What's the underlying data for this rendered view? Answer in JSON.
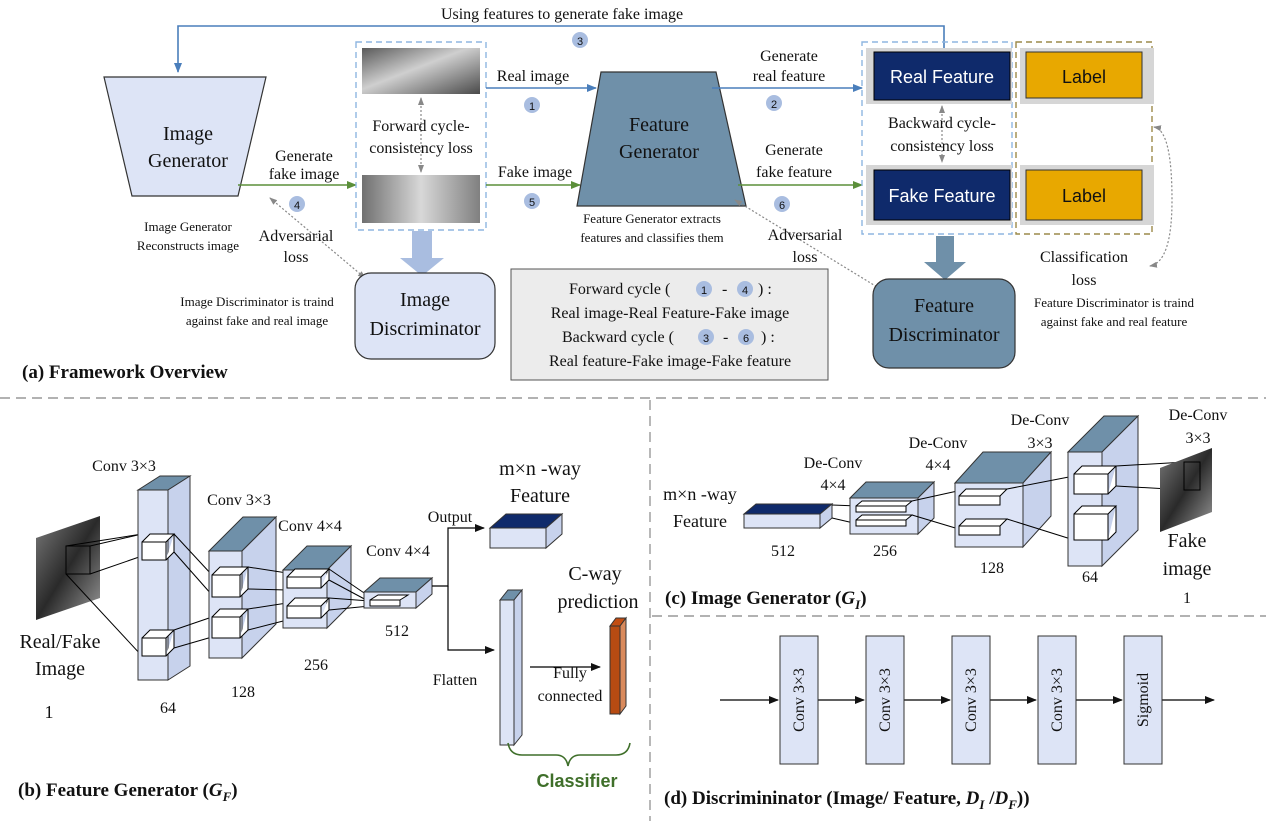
{
  "overview": {
    "top_arrow_label": "Using features to generate fake image",
    "image_generator": [
      "Image",
      "Generator"
    ],
    "image_generator_note": [
      "Image Generator",
      "Reconstructs image"
    ],
    "generate_fake_image": [
      "Generate",
      "fake image"
    ],
    "forward_cycle_loss": [
      "Forward cycle-",
      "consistency loss"
    ],
    "adversarial_loss_left": [
      "Adversarial",
      "loss"
    ],
    "real_image": "Real image",
    "fake_image": "Fake image",
    "feature_generator": [
      "Feature",
      "Generator"
    ],
    "feature_generator_note": [
      "Feature Generator extracts",
      "features and classifies them"
    ],
    "generate_real_feature": [
      "Generate",
      "real feature"
    ],
    "generate_fake_feature": [
      "Generate",
      "fake feature"
    ],
    "real_feature": "Real Feature",
    "fake_feature": "Fake Feature",
    "label": "Label",
    "backward_cycle_loss": [
      "Backward cycle-",
      "consistency loss"
    ],
    "adversarial_loss_right": [
      "Adversarial",
      "loss"
    ],
    "classification_loss": [
      "Classification",
      "loss"
    ],
    "image_discriminator": [
      "Image",
      "Discriminator"
    ],
    "image_discriminator_note": [
      "Image Discriminator is traind",
      "against fake and real image"
    ],
    "feature_discriminator": [
      "Feature",
      "Discriminator"
    ],
    "feature_discriminator_note": [
      "Feature Discriminator is traind",
      "against fake and real feature"
    ],
    "forward_cycle": {
      "prefix": "Forward cycle (",
      "a": "1",
      "dash": "-",
      "b": "4",
      "suffix": ") :"
    },
    "forward_cycle_desc": "Real image-Real Feature-Fake image",
    "backward_cycle": {
      "prefix": "Backward cycle (",
      "a": "3",
      "dash": "-",
      "b": "6",
      "suffix": ") :"
    },
    "backward_cycle_desc": "Real feature-Fake image-Fake feature",
    "step_numbers": [
      "1",
      "2",
      "3",
      "4",
      "5",
      "6"
    ],
    "caption": "(a) Framework Overview"
  },
  "feature_generator_panel": {
    "conv1": "Conv 3×3",
    "conv2": "Conv 3×3",
    "conv3": "Conv 4×4",
    "conv4": "Conv 4×4",
    "input": [
      "Real/Fake",
      "Image"
    ],
    "input_channels": "1",
    "ch1": "64",
    "ch2": "128",
    "ch3": "256",
    "ch4": "512",
    "output": "Output",
    "flatten": "Flatten",
    "feature_out": [
      "m×n -way",
      "Feature"
    ],
    "prediction": [
      "C-way",
      "prediction"
    ],
    "fully_connected": [
      "Fully",
      "connected"
    ],
    "classifier": "Classifier",
    "caption_main": "(b) Feature Generator (",
    "caption_sym": "G",
    "caption_sub": "F",
    "caption_end": ")"
  },
  "image_generator_panel": {
    "input": [
      "m×n -way",
      "Feature"
    ],
    "in_ch": "512",
    "deconv1": [
      "De-Conv",
      "4×4"
    ],
    "deconv2": [
      "De-Conv",
      "4×4"
    ],
    "deconv3": [
      "De-Conv",
      "3×3"
    ],
    "deconv4": [
      "De-Conv",
      "3×3"
    ],
    "ch1": "256",
    "ch2": "128",
    "ch3": "64",
    "output": [
      "Fake",
      "image"
    ],
    "out_ch": "1",
    "caption_main": "(c)  Image Generator (",
    "caption_sym": "G",
    "caption_sub": "I",
    "caption_end": ")"
  },
  "discriminator_panel": {
    "layers": [
      "Conv 3×3",
      "Conv 3×3",
      "Conv 3×3",
      "Conv 3×3",
      "Sigmoid"
    ],
    "caption_main": "(d) Discrimininator (Image/ Feature, ",
    "caption_d1": "D",
    "caption_s1": "I",
    "caption_slash": " /",
    "caption_d2": "D",
    "caption_s2": "F",
    "caption_end": "))"
  },
  "colors": {
    "blue_arrow": "#4a7ebb",
    "green_arrow": "#5b8f3a",
    "navy_box": "#0f2a6b",
    "label_box": "#e8a800",
    "steel": "#6f90a9",
    "lavender": "#dde4f6",
    "circle": "#a9bde0",
    "classifier_green": "#3f6f2a",
    "fc_orange": "#b74b12"
  }
}
